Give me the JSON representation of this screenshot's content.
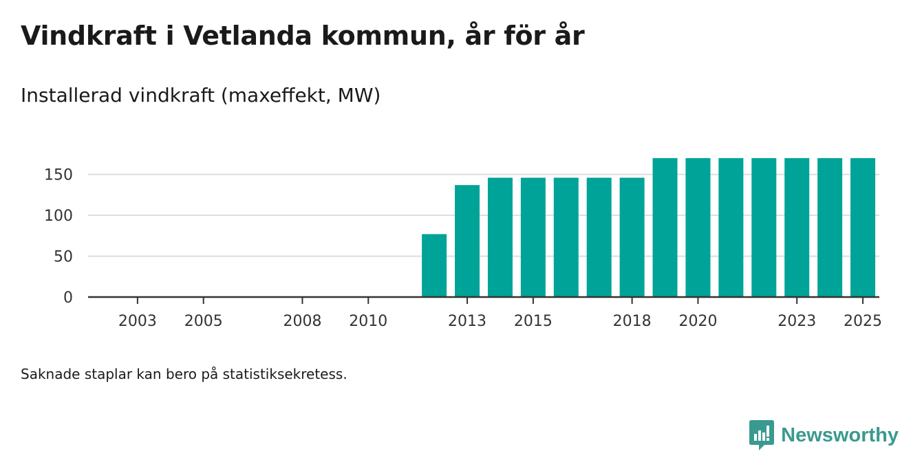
{
  "title": "Vindkraft i Vetlanda kommun, år för år",
  "subtitle": "Installerad vindkraft (maxeffekt, MW)",
  "footnote": "Saknade staplar kan bero på statistiksekretess.",
  "brand": {
    "name": "Newsworthy",
    "icon": "newsworthy-logo-icon",
    "color": "#3a9a8f"
  },
  "colors": {
    "bar": "#00a398",
    "grid": "#dddddd",
    "axis": "#333333",
    "text": "#333333"
  },
  "chart_data": {
    "type": "bar",
    "title": "Vindkraft i Vetlanda kommun, år för år",
    "ylabel": "Installerad vindkraft (maxeffekt, MW)",
    "xlabel": "",
    "x": [
      2002,
      2003,
      2004,
      2005,
      2006,
      2007,
      2008,
      2009,
      2010,
      2011,
      2012,
      2013,
      2014,
      2015,
      2016,
      2017,
      2018,
      2019,
      2020,
      2021,
      2022,
      2023,
      2024,
      2025
    ],
    "values": [
      0,
      0,
      0,
      0,
      0,
      0,
      0,
      0,
      0,
      0,
      77,
      137,
      146,
      146,
      146,
      146,
      146,
      170,
      170,
      170,
      170,
      170,
      170,
      170
    ],
    "x_ticks": [
      2003,
      2005,
      2008,
      2010,
      2013,
      2015,
      2018,
      2020,
      2023,
      2025
    ],
    "y_ticks": [
      0,
      50,
      100,
      150
    ],
    "ylim": [
      0,
      175
    ],
    "grid": true,
    "legend": "none"
  }
}
